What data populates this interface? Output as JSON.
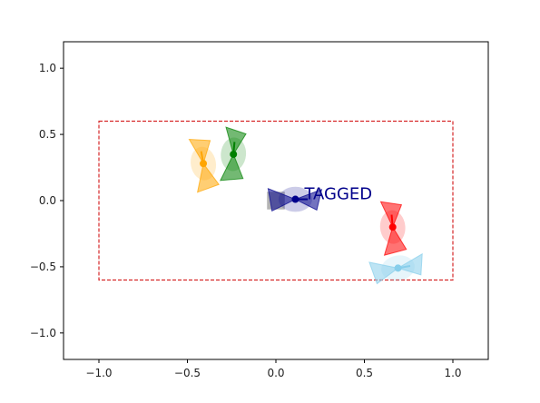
{
  "chart_data": {
    "type": "scatter",
    "title": "",
    "xlabel": "",
    "ylabel": "",
    "xlim": [
      -1.2,
      1.2
    ],
    "ylim": [
      -1.2,
      1.2
    ],
    "xticks": [
      -1.0,
      -0.5,
      0.0,
      0.5,
      1.0
    ],
    "yticks": [
      -1.0,
      -0.5,
      0.0,
      0.5,
      1.0
    ],
    "xtick_labels": [
      "−1.0",
      "−0.5",
      "0.0",
      "0.5",
      "1.0"
    ],
    "ytick_labels": [
      "−1.0",
      "−0.5",
      "0.0",
      "0.5",
      "1.0"
    ],
    "grid": false,
    "boundary": {
      "x": [
        -1.0,
        1.0
      ],
      "y": [
        -0.6,
        0.6
      ],
      "color": "#d62728",
      "style": "dashed"
    },
    "agents": [
      {
        "color": "#ffa500",
        "x": -0.41,
        "y": 0.28,
        "heading_deg": 100
      },
      {
        "color": "#008000",
        "x": -0.24,
        "y": 0.35,
        "heading_deg": 85
      },
      {
        "color": "#00008b",
        "x": 0.11,
        "y": 0.01,
        "heading_deg": 0,
        "label": "TAGGED"
      },
      {
        "color": "#ff0000",
        "x": 0.66,
        "y": -0.2,
        "heading_deg": 95
      },
      {
        "color": "#87ceeb",
        "x": 0.69,
        "y": -0.51,
        "heading_deg": 10
      }
    ],
    "flags": [
      {
        "color": "#808080",
        "x": 0.0,
        "y": 0.0
      }
    ]
  }
}
